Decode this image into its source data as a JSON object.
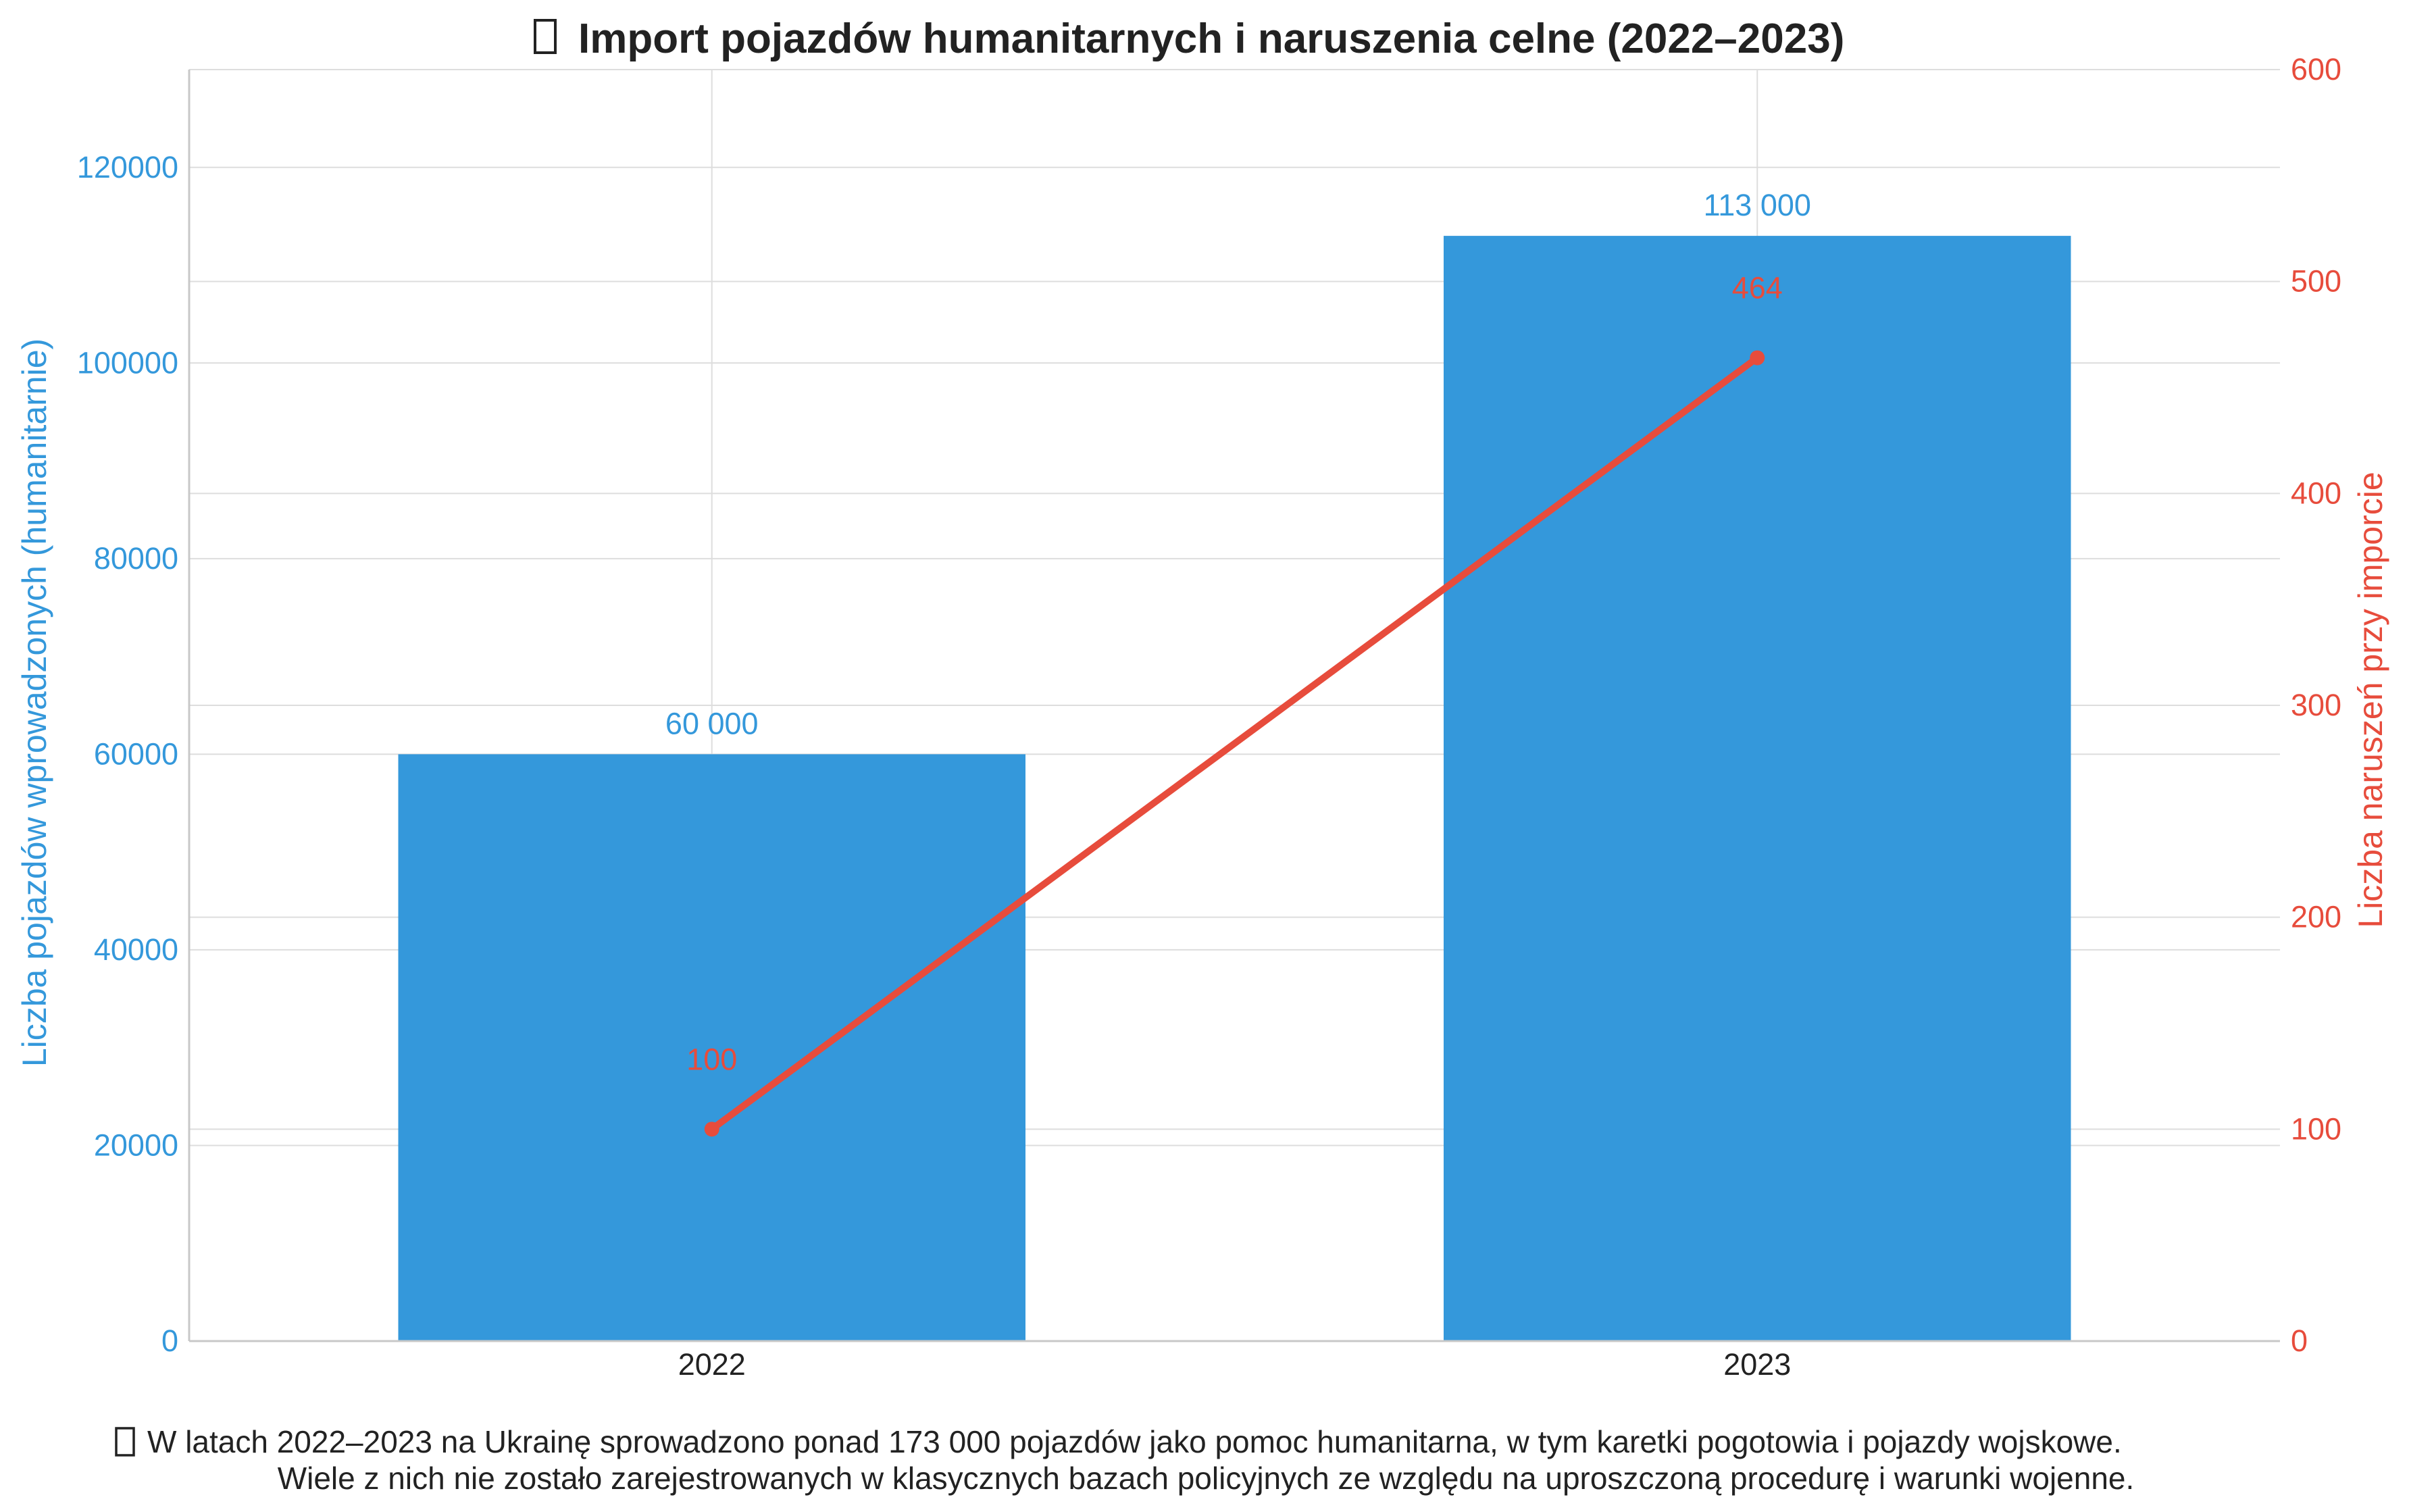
{
  "chart_data": {
    "type": "bar",
    "title": "Import pojazdów humanitarnych i naruszenia celne (2022–2023)",
    "title_icon": "missing-glyph-box",
    "categories": [
      "2022",
      "2023"
    ],
    "series": [
      {
        "name": "Liczba pojazdów wprowadzonych (humanitarnie)",
        "type": "bar",
        "axis": "left",
        "values": [
          60000,
          113000
        ],
        "labels": [
          "60 000",
          "113 000"
        ],
        "color": "#3498db"
      },
      {
        "name": "Liczba naruszeń przy imporcie",
        "type": "line",
        "axis": "right",
        "values": [
          100,
          464
        ],
        "labels": [
          "100",
          "464"
        ],
        "color": "#e74c3c"
      }
    ],
    "ylabel_left": "Liczba pojazdów wprowadzonych (humanitarnie)",
    "ylabel_right": "Liczba naruszeń przy imporcie",
    "ylim_left": [
      0,
      130000
    ],
    "ylim_right": [
      0,
      600
    ],
    "yticks_left": [
      0,
      20000,
      40000,
      60000,
      80000,
      100000,
      120000
    ],
    "yticks_right": [
      0,
      100,
      200,
      300,
      400,
      500,
      600
    ],
    "grid": true,
    "colors": {
      "left_axis": "#3498db",
      "right_axis": "#e74c3c",
      "grid": "#dddddd"
    }
  },
  "footnote": {
    "icon": "missing-glyph-box",
    "line1": "W latach 2022–2023 na Ukrainę sprowadzono ponad 173 000 pojazdów jako pomoc humanitarna, w tym karetki pogotowia i pojazdy wojskowe.",
    "line2": "Wiele z nich nie zostało zarejestrowanych w klasycznych bazach policyjnych ze względu na uproszczoną procedurę i warunki wojenne."
  }
}
